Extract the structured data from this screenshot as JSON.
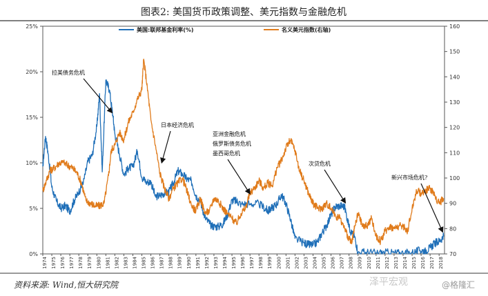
{
  "chart_data": {
    "type": "line",
    "title": "图表2:  美国货币政策调整、美元指数与金融危机",
    "source": "资料来源: Wind,恒大研究院",
    "watermark": "泽平宏观",
    "watermark2": "@格隆汇",
    "x_range": [
      1974,
      2018.6
    ],
    "x_ticks": [
      "1974",
      "1975",
      "1976",
      "1977",
      "1978",
      "1979",
      "1980",
      "1981",
      "1982",
      "1983",
      "1984",
      "1985",
      "1986",
      "1987",
      "1988",
      "1989",
      "1990",
      "1991",
      "1992",
      "1993",
      "1994",
      "1995",
      "1996",
      "1997",
      "1998",
      "1999",
      "2000",
      "2001",
      "2002",
      "2003",
      "2004",
      "2005",
      "2006",
      "2007",
      "2008",
      "2009",
      "2010",
      "2011",
      "2012",
      "2013",
      "2014",
      "2015",
      "2016",
      "2017",
      "2018"
    ],
    "y_left": {
      "range": [
        0,
        25
      ],
      "ticks": [
        "0%",
        "5%",
        "10%",
        "15%",
        "20%",
        "25%"
      ]
    },
    "y_right": {
      "range": [
        70,
        160
      ],
      "ticks": [
        "70",
        "80",
        "90",
        "100",
        "110",
        "120",
        "130",
        "140",
        "150",
        "160"
      ]
    },
    "grid": false,
    "legend_position": "top",
    "series": [
      {
        "name": "美国:联邦基金利率(%)",
        "axis": "left",
        "color": "#1f6fb8",
        "x": [
          1974.0,
          1974.3,
          1974.6,
          1975.0,
          1975.5,
          1976.0,
          1976.5,
          1977.0,
          1977.5,
          1978.0,
          1978.5,
          1979.0,
          1979.5,
          1980.0,
          1980.3,
          1980.6,
          1981.0,
          1981.4,
          1981.8,
          1982.0,
          1982.5,
          1983.0,
          1983.5,
          1984.0,
          1984.5,
          1985.0,
          1985.5,
          1986.0,
          1986.5,
          1987.0,
          1987.5,
          1988.0,
          1988.5,
          1989.0,
          1989.5,
          1990.0,
          1990.5,
          1991.0,
          1991.5,
          1992.0,
          1992.5,
          1993.0,
          1993.5,
          1994.0,
          1994.5,
          1995.0,
          1995.5,
          1996.0,
          1997.0,
          1998.0,
          1998.8,
          1999.0,
          1999.5,
          2000.0,
          2000.5,
          2001.0,
          2001.5,
          2002.0,
          2003.0,
          2003.5,
          2004.0,
          2004.5,
          2005.0,
          2005.5,
          2006.0,
          2006.5,
          2007.0,
          2007.5,
          2008.0,
          2008.3,
          2008.6,
          2009.0,
          2010.0,
          2011.0,
          2012.0,
          2013.0,
          2014.0,
          2015.0,
          2015.9,
          2016.5,
          2017.0,
          2017.5,
          2018.0,
          2018.5
        ],
        "values": [
          9.6,
          12.9,
          11.0,
          7.3,
          5.8,
          5.0,
          5.3,
          4.7,
          5.9,
          6.8,
          7.8,
          10.1,
          10.9,
          14.0,
          17.6,
          9.0,
          19.1,
          18.0,
          15.0,
          13.2,
          11.0,
          8.7,
          9.4,
          9.6,
          11.3,
          8.4,
          7.9,
          7.9,
          6.3,
          6.4,
          6.7,
          6.8,
          7.8,
          9.1,
          8.8,
          8.2,
          8.0,
          6.4,
          5.8,
          4.0,
          3.3,
          3.0,
          3.0,
          3.3,
          4.3,
          5.9,
          5.8,
          5.5,
          5.5,
          5.5,
          4.9,
          4.7,
          5.1,
          5.5,
          6.5,
          5.5,
          3.8,
          1.7,
          1.2,
          1.0,
          1.0,
          1.3,
          2.3,
          3.1,
          4.3,
          5.2,
          5.3,
          5.2,
          3.0,
          2.2,
          2.0,
          0.16,
          0.18,
          0.1,
          0.14,
          0.11,
          0.09,
          0.13,
          0.38,
          0.38,
          0.66,
          1.16,
          1.41,
          1.91
        ]
      },
      {
        "name": "名义美元指数(右轴)",
        "axis": "right",
        "color": "#e07b1b",
        "x": [
          1974.0,
          1974.4,
          1974.8,
          1975.3,
          1975.8,
          1976.3,
          1976.8,
          1977.3,
          1977.8,
          1978.3,
          1978.8,
          1979.3,
          1979.8,
          1980.3,
          1980.8,
          1981.3,
          1981.6,
          1982.0,
          1982.5,
          1983.0,
          1983.5,
          1984.0,
          1984.5,
          1985.0,
          1985.2,
          1985.6,
          1986.0,
          1986.5,
          1987.0,
          1987.5,
          1988.0,
          1988.5,
          1989.0,
          1989.5,
          1990.0,
          1990.5,
          1991.0,
          1991.5,
          1992.0,
          1992.5,
          1993.0,
          1993.5,
          1994.0,
          1994.5,
          1995.0,
          1995.5,
          1996.0,
          1996.5,
          1997.0,
          1997.5,
          1998.0,
          1998.5,
          1999.0,
          1999.5,
          2000.0,
          2000.5,
          2001.0,
          2001.5,
          2002.0,
          2002.5,
          2003.0,
          2003.5,
          2004.0,
          2004.5,
          2005.0,
          2005.5,
          2006.0,
          2006.5,
          2007.0,
          2007.5,
          2008.0,
          2008.3,
          2008.6,
          2009.0,
          2009.5,
          2010.0,
          2010.5,
          2011.0,
          2011.5,
          2012.0,
          2012.5,
          2013.0,
          2013.5,
          2014.0,
          2014.5,
          2015.0,
          2015.5,
          2016.0,
          2016.5,
          2017.0,
          2017.5,
          2018.0,
          2018.5
        ],
        "values": [
          95,
          99,
          103,
          104,
          106,
          106,
          105,
          104,
          102,
          98,
          91,
          90,
          89,
          89,
          90,
          101,
          111,
          113,
          118,
          115,
          122,
          126,
          131,
          135,
          147,
          136,
          123,
          113,
          102,
          96,
          92,
          96,
          98,
          100,
          95,
          89,
          87,
          92,
          86,
          87,
          92,
          91,
          88,
          86,
          84,
          82,
          86,
          88,
          94,
          96,
          99,
          96,
          98,
          97,
          104,
          107,
          112,
          115,
          111,
          103,
          99,
          94,
          90,
          88,
          88,
          90,
          88,
          85,
          84,
          80,
          76,
          74,
          80,
          86,
          81,
          81,
          84,
          77,
          75,
          79,
          81,
          80,
          81,
          81,
          79,
          88,
          95,
          94,
          95,
          96,
          93,
          90,
          92
        ]
      }
    ],
    "annotations": [
      {
        "text": "拉美债务危机",
        "target_x": 1981.7,
        "target_y": 15.5
      },
      {
        "text": "日本经济危机",
        "target_x": 1987.2,
        "target_y": 10.0
      },
      {
        "text": "亚洲金融危机",
        "target_x": 1997.0,
        "target_y": 6.6
      },
      {
        "text": "俄罗斯债务危机",
        "target_x": 1997.0,
        "target_y": 6.6
      },
      {
        "text": "墨西哥危机",
        "target_x": 1997.0,
        "target_y": 6.6
      },
      {
        "text": "次贷危机",
        "target_x": 2007.6,
        "target_y": 5.6
      },
      {
        "text": "新兴市场危机?",
        "target_x": 2018.4,
        "target_y": 2.4
      }
    ]
  }
}
